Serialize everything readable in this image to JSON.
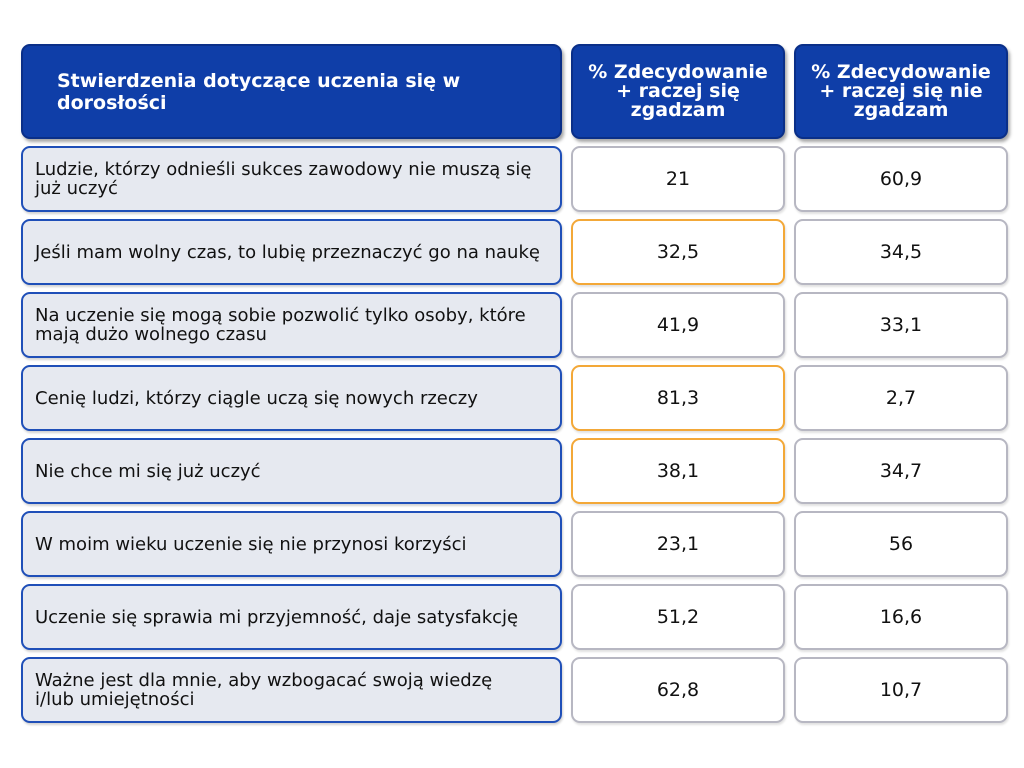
{
  "chart_data": {
    "type": "table",
    "columns": [
      "Stwierdzenia dotyczące uczenia się w dorosłości",
      "% Zdecydowanie + raczej się zgadzam",
      "% Zdecydowanie + raczej się nie zgadzam"
    ],
    "header_lines": {
      "col1": [
        "% Zdecydowanie",
        "+ raczej się",
        "zgadzam"
      ],
      "col2": [
        "% Zdecydowanie",
        "+ raczej się nie",
        "zgadzam"
      ]
    },
    "rows": [
      {
        "statement_lines": [
          "Ludzie, którzy odnieśli sukces zawodowy nie muszą się",
          "już uczyć"
        ],
        "agree": "21",
        "disagree": "60,9",
        "highlight": false
      },
      {
        "statement_lines": [
          "Jeśli mam wolny czas, to lubię przeznaczyć go na naukę"
        ],
        "agree": "32,5",
        "disagree": "34,5",
        "highlight": true
      },
      {
        "statement_lines": [
          "Na uczenie się mogą sobie pozwolić tylko osoby, które",
          "mają dużo wolnego czasu"
        ],
        "agree": "41,9",
        "disagree": "33,1",
        "highlight": false
      },
      {
        "statement_lines": [
          "Cenię ludzi, którzy ciągle uczą się nowych rzeczy"
        ],
        "agree": "81,3",
        "disagree": "2,7",
        "highlight": true
      },
      {
        "statement_lines": [
          "Nie chce mi się już uczyć"
        ],
        "agree": "38,1",
        "disagree": "34,7",
        "highlight": true
      },
      {
        "statement_lines": [
          "W moim wieku uczenie się nie przynosi korzyści"
        ],
        "agree": "23,1",
        "disagree": "56",
        "highlight": false
      },
      {
        "statement_lines": [
          "Uczenie się sprawia mi przyjemność, daje satysfakcję"
        ],
        "agree": "51,2",
        "disagree": "16,6",
        "highlight": false
      },
      {
        "statement_lines": [
          "Ważne jest dla mnie, aby wzbogacać swoją wiedzę",
          "i/lub umiejętności"
        ],
        "agree": "62,8",
        "disagree": "10,7",
        "highlight": false
      }
    ],
    "colors": {
      "header_bg": "#0f3ea8",
      "header_text": "#ffffff",
      "statement_bg": "#e6e9f0",
      "statement_border": "#1f4fb8",
      "value_border": "#b7b7c2",
      "highlight_border": "#f3a838"
    }
  }
}
